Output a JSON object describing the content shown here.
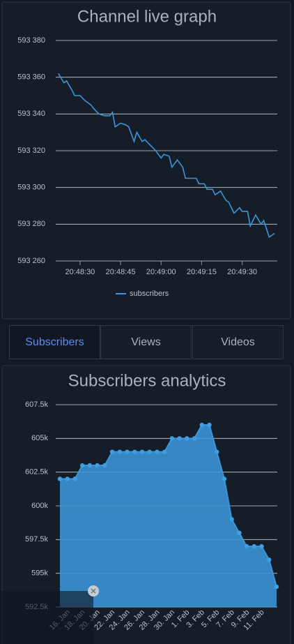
{
  "chart_data": [
    {
      "type": "line",
      "title": "Channel live graph",
      "x": [
        "20:48:22",
        "20:48:24",
        "20:48:25",
        "20:48:27",
        "20:48:28",
        "20:48:30",
        "20:48:32",
        "20:48:34",
        "20:48:35",
        "20:48:37",
        "20:48:39",
        "20:48:41",
        "20:48:42",
        "20:48:43",
        "20:48:45",
        "20:48:47",
        "20:48:48",
        "20:48:50",
        "20:48:51",
        "20:48:53",
        "20:48:54",
        "20:48:56",
        "20:48:58",
        "20:49:00",
        "20:49:01",
        "20:49:03",
        "20:49:04",
        "20:49:06",
        "20:49:08",
        "20:49:09",
        "20:49:11",
        "20:49:13",
        "20:49:14",
        "20:49:16",
        "20:49:17",
        "20:49:19",
        "20:49:20",
        "20:49:22",
        "20:49:24",
        "20:49:25",
        "20:49:27",
        "20:49:29",
        "20:49:30",
        "20:49:32",
        "20:49:33",
        "20:49:35",
        "20:49:37",
        "20:49:38",
        "20:49:40",
        "20:49:42"
      ],
      "series": [
        {
          "name": "subscribers",
          "color": "#3b96d8",
          "values": [
            593362,
            593357,
            593358,
            593353,
            593350,
            593350,
            593347,
            593345,
            593343,
            593340,
            593339,
            593339,
            593341,
            593333,
            593335,
            593334,
            593333,
            593325,
            593330,
            593325,
            593326,
            593323,
            593320,
            593316,
            593318,
            593317,
            593311,
            593315,
            593311,
            593305,
            593305,
            593305,
            593302,
            593302,
            593299,
            593299,
            593296,
            593298,
            593293,
            593292,
            593286,
            593289,
            593287,
            593287,
            593279,
            593285,
            593280,
            593282,
            593273,
            593275
          ]
        }
      ],
      "xlim": [
        "20:48:21",
        "20:49:43"
      ],
      "xticks": [
        "20:48:30",
        "20:48:45",
        "20:49:00",
        "20:49:15",
        "20:49:30"
      ],
      "ylim": [
        593260,
        593380
      ],
      "yticks": [
        {
          "value": 593260,
          "label": "593 260"
        },
        {
          "value": 593280,
          "label": "593 280"
        },
        {
          "value": 593300,
          "label": "593 300"
        },
        {
          "value": 593320,
          "label": "593 320"
        },
        {
          "value": 593340,
          "label": "593 340"
        },
        {
          "value": 593360,
          "label": "593 360"
        },
        {
          "value": 593380,
          "label": "593 380"
        }
      ],
      "grid": true,
      "legend": "bottom"
    },
    {
      "type": "area",
      "title": "Subscribers analytics",
      "categories": [
        null,
        "16. Jan",
        null,
        "18. Jan",
        null,
        "20. Jan",
        null,
        "22. Jan",
        null,
        "24. Jan",
        null,
        "26. Jan",
        null,
        "28. Jan",
        null,
        "30. Jan",
        null,
        "1. Feb",
        null,
        "3. Feb",
        null,
        "5. Feb",
        null,
        "7. Feb",
        null,
        "9. Feb",
        null,
        "11. Feb",
        null,
        null
      ],
      "series": [
        {
          "color": "#3b96d8",
          "values": [
            602000,
            602000,
            602000,
            603000,
            603000,
            603000,
            603000,
            604000,
            604000,
            604000,
            604000,
            604000,
            604000,
            604000,
            604000,
            605000,
            605000,
            605000,
            605000,
            606000,
            606000,
            604000,
            602000,
            599000,
            598000,
            597000,
            597000,
            597000,
            596000,
            594000
          ]
        }
      ],
      "ylim": [
        592500,
        607500
      ],
      "yticks": [
        {
          "value": 592500,
          "label": "592.5k"
        },
        {
          "value": 595000,
          "label": "595k"
        },
        {
          "value": 597500,
          "label": "597.5k"
        },
        {
          "value": 600000,
          "label": "600k"
        },
        {
          "value": 602500,
          "label": "602.5k"
        },
        {
          "value": 605000,
          "label": "605k"
        },
        {
          "value": 607500,
          "label": "607.5k"
        }
      ],
      "grid": true
    }
  ],
  "tabs": [
    "Subscribers",
    "Views",
    "Videos"
  ]
}
